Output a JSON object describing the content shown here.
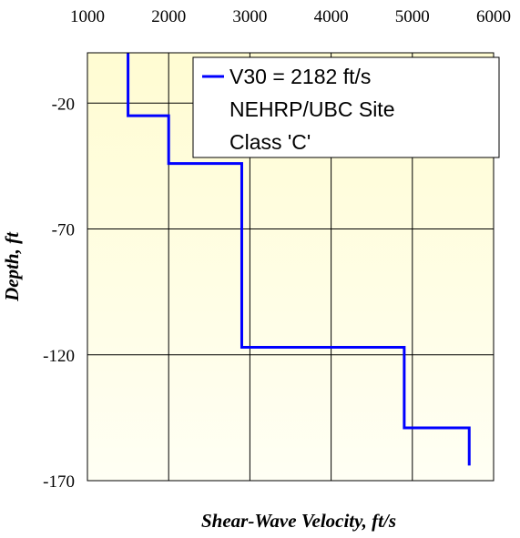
{
  "chart_data": {
    "type": "line",
    "title": "",
    "xlabel": "Shear-Wave Velocity, ft/s",
    "ylabel": "Depth, ft",
    "xlim": [
      1000,
      6000
    ],
    "ylim": [
      -170,
      0
    ],
    "x_axis_position": "top",
    "x_ticks": [
      "1000",
      "2000",
      "3000",
      "4000",
      "5000",
      "6000"
    ],
    "y_ticks": [
      "-20",
      "-70",
      "-120",
      "-170"
    ],
    "grid": true,
    "legend_position": "top-right",
    "series": [
      {
        "name": "V30 = 2182 ft/s NEHRP/UBC Site Class 'C'",
        "legend_lines": [
          "V30 = 2182 ft/s",
          "NEHRP/UBC Site",
          "Class 'C'"
        ],
        "color": "#0000ff",
        "x": [
          1500,
          1500,
          2000,
          2000,
          2900,
          2900,
          4900,
          4900,
          5700,
          5700
        ],
        "y": [
          0,
          -25,
          -25,
          -44,
          -44,
          -117,
          -117,
          -149,
          -149,
          -164
        ]
      }
    ]
  },
  "colors": {
    "plot_background_top": "#fffcd2",
    "plot_background_bottom": "#fffff4",
    "grid": "#000000",
    "series": "#0000ff"
  }
}
